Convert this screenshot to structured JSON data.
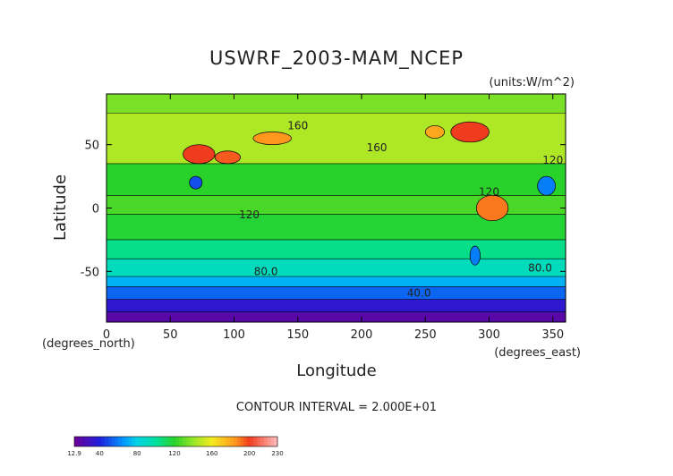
{
  "chart_data": {
    "type": "heatmap",
    "title": "USWRF_2003-MAM_NCEP",
    "units": "(units:W/m^2)",
    "xlabel": "Longitude",
    "ylabel": "Latitude",
    "x_unit_note": "(degrees_east)",
    "y_unit_note": "(degrees_north)",
    "xlim": [
      0,
      360
    ],
    "ylim": [
      -90,
      90
    ],
    "x_ticks": [
      0,
      50,
      100,
      150,
      200,
      250,
      300,
      350
    ],
    "y_ticks": [
      -50,
      0,
      50
    ],
    "contour_interval_text": "CONTOUR INTERVAL = 2.000E+01",
    "contour_labels": [
      {
        "text": "160",
        "lon": 150,
        "lat": 62
      },
      {
        "text": "160",
        "lon": 212,
        "lat": 45
      },
      {
        "text": "120",
        "lon": 300,
        "lat": 10
      },
      {
        "text": "120",
        "lon": 350,
        "lat": 35
      },
      {
        "text": "120",
        "lon": 112,
        "lat": -8
      },
      {
        "text": "80.0",
        "lon": 125,
        "lat": -53
      },
      {
        "text": "80.0",
        "lon": 340,
        "lat": -50
      },
      {
        "text": "40.0",
        "lon": 245,
        "lat": -70
      }
    ],
    "latitude_band_values": [
      {
        "lat_min": -90,
        "lat_max": -82,
        "value": 20
      },
      {
        "lat_min": -82,
        "lat_max": -72,
        "value": 35
      },
      {
        "lat_min": -72,
        "lat_max": -62,
        "value": 55
      },
      {
        "lat_min": -62,
        "lat_max": -54,
        "value": 72
      },
      {
        "lat_min": -54,
        "lat_max": -40,
        "value": 92
      },
      {
        "lat_min": -40,
        "lat_max": -25,
        "value": 104
      },
      {
        "lat_min": -25,
        "lat_max": -5,
        "value": 118
      },
      {
        "lat_min": -5,
        "lat_max": 10,
        "value": 126
      },
      {
        "lat_min": 10,
        "lat_max": 35,
        "value": 120
      },
      {
        "lat_min": 35,
        "lat_max": 75,
        "value": 145
      },
      {
        "lat_min": 75,
        "lat_max": 90,
        "value": 135
      }
    ],
    "regional_values": [
      {
        "lon_min": 60,
        "lon_max": 85,
        "lat_min": 35,
        "lat_max": 50,
        "value": 200
      },
      {
        "lon_min": 85,
        "lon_max": 105,
        "lat_min": 35,
        "lat_max": 45,
        "value": 195
      },
      {
        "lon_min": 115,
        "lon_max": 145,
        "lat_min": 50,
        "lat_max": 60,
        "value": 185
      },
      {
        "lon_min": 270,
        "lon_max": 300,
        "lat_min": 52,
        "lat_max": 68,
        "value": 200
      },
      {
        "lon_min": 290,
        "lon_max": 315,
        "lat_min": -10,
        "lat_max": 10,
        "value": 190
      },
      {
        "lon_min": 250,
        "lon_max": 265,
        "lat_min": 55,
        "lat_max": 65,
        "value": 180
      },
      {
        "lon_min": 65,
        "lon_max": 75,
        "lat_min": 15,
        "lat_max": 25,
        "value": 50
      },
      {
        "lon_min": 338,
        "lon_max": 352,
        "lat_min": 10,
        "lat_max": 25,
        "value": 60
      },
      {
        "lon_min": 285,
        "lon_max": 293,
        "lat_min": -45,
        "lat_max": -30,
        "value": 60
      }
    ],
    "colorbar": {
      "min": 12.9,
      "max": 230,
      "tick_labels": [
        "12.9",
        "40",
        "80",
        "120",
        "160",
        "200",
        "230"
      ],
      "tick_values": [
        12.9,
        40,
        80,
        120,
        160,
        200,
        230
      ]
    }
  }
}
